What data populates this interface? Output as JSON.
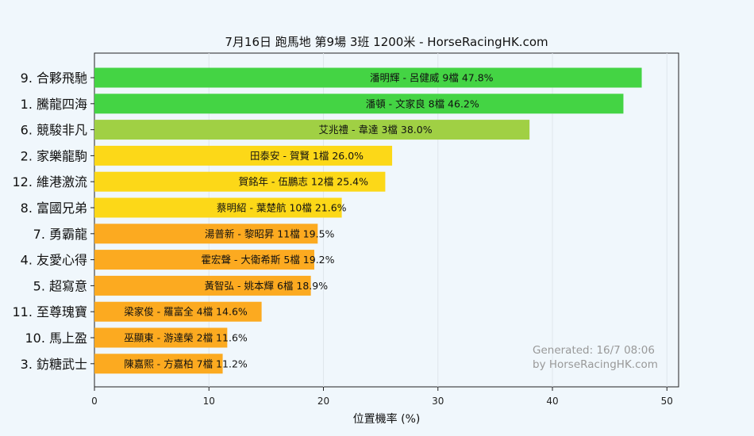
{
  "chart_data": {
    "type": "bar",
    "orientation": "horizontal",
    "title": "7月16日  跑馬地  第9場  3班  1200米 - HorseRacingHK.com",
    "xlabel": "位置機率 (%)",
    "ylabel": "",
    "xlim": [
      0,
      50
    ],
    "xticks": [
      0,
      10,
      20,
      30,
      40,
      50
    ],
    "grid": "vertical",
    "categories": [
      "9. 合夥飛馳",
      "1. 騰龍四海",
      "6. 競駿非凡",
      "2. 家樂龍駒",
      "12. 維港激流",
      "8. 富國兄弟",
      "7. 勇霸龍",
      "4. 友愛心得",
      "5. 超寫意",
      "11. 至尊瑰寶",
      "10. 馬上盈",
      "3. 鈁糖武士"
    ],
    "values": [
      47.8,
      46.2,
      38.0,
      26.0,
      25.4,
      21.6,
      19.5,
      19.2,
      18.9,
      14.6,
      11.6,
      11.2
    ],
    "labels": [
      "潘明輝 - 呂健威 9檔  47.8%",
      "潘頓 - 文家良 8檔  46.2%",
      "艾兆禮 - 韋達 3檔  38.0%",
      "田泰安 - 賀賢 1檔  26.0%",
      "賀銘年 - 伍鵬志 12檔  25.4%",
      "蔡明紹 - 葉楚航 10檔  21.6%",
      "湯普新 - 黎昭昇 11檔  19.5%",
      "霍宏聲 - 大衛希斯 5檔  19.2%",
      "黃智弘 - 姚本輝 6檔  18.9%",
      "梁家俊 - 羅富全 4檔  14.6%",
      "巫顯東 - 游達榮 2檔  11.6%",
      "陳嘉熙 - 方嘉柏 7檔  11.2%"
    ],
    "colors": [
      "#44d444",
      "#44d444",
      "#a0d044",
      "#fcd818",
      "#fcd818",
      "#fcd818",
      "#fcaa20",
      "#fcaa20",
      "#fcaa20",
      "#fcaa20",
      "#fcaa20",
      "#fcaa20"
    ],
    "annotation": [
      "Generated: 16/7 08:06",
      "by HorseRacingHK.com"
    ]
  }
}
